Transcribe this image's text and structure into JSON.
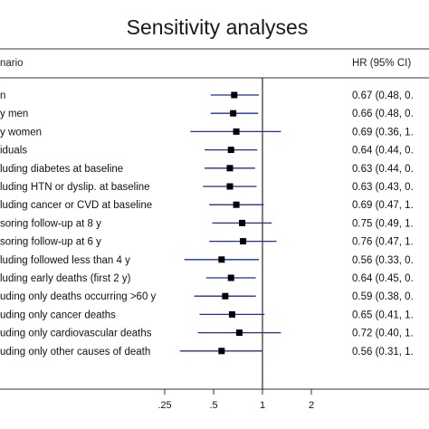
{
  "chart_data": {
    "type": "forest",
    "title": "Sensitivity analyses",
    "column_headers": {
      "label": "nario",
      "value": "HR (95% CI)"
    },
    "x_scale": "log",
    "x_ticks": [
      {
        "value": 0.25,
        "label": ".25"
      },
      {
        "value": 0.5,
        "label": ".5"
      },
      {
        "value": 1,
        "label": "1"
      },
      {
        "value": 2,
        "label": "2"
      }
    ],
    "reference_line": 1,
    "rows": [
      {
        "label": "n",
        "hr": 0.67,
        "lo": 0.48,
        "hi": 0.95,
        "text": "0.67 (0.48, 0."
      },
      {
        "label": "y men",
        "hr": 0.66,
        "lo": 0.48,
        "hi": 0.94,
        "text": "0.66 (0.48, 0."
      },
      {
        "label": "y women",
        "hr": 0.69,
        "lo": 0.36,
        "hi": 1.3,
        "text": "0.69 (0.36, 1."
      },
      {
        "label": "iduals",
        "hr": 0.64,
        "lo": 0.44,
        "hi": 0.93,
        "text": "0.64 (0.44, 0."
      },
      {
        "label": "luding diabetes at baseline",
        "hr": 0.63,
        "lo": 0.44,
        "hi": 0.9,
        "text": "0.63 (0.44, 0."
      },
      {
        "label": "luding HTN or dyslip. at baseline",
        "hr": 0.63,
        "lo": 0.43,
        "hi": 0.92,
        "text": "0.63 (0.43, 0."
      },
      {
        "label": "luding cancer or CVD at baseline",
        "hr": 0.69,
        "lo": 0.47,
        "hi": 1.02,
        "text": "0.69 (0.47, 1."
      },
      {
        "label": "soring follow-up at 8 y",
        "hr": 0.75,
        "lo": 0.49,
        "hi": 1.14,
        "text": "0.75 (0.49, 1."
      },
      {
        "label": "soring follow-up at 6 y",
        "hr": 0.76,
        "lo": 0.47,
        "hi": 1.22,
        "text": "0.76 (0.47, 1."
      },
      {
        "label": "luding followed less than 4 y",
        "hr": 0.56,
        "lo": 0.33,
        "hi": 0.95,
        "text": "0.56 (0.33, 0."
      },
      {
        "label": "luding early deaths (first 2 y)",
        "hr": 0.64,
        "lo": 0.45,
        "hi": 0.91,
        "text": "0.64 (0.45, 0."
      },
      {
        "label": "uding only deaths occurring >60 y",
        "hr": 0.59,
        "lo": 0.38,
        "hi": 0.91,
        "text": "0.59 (0.38, 0."
      },
      {
        "label": "uding only cancer deaths",
        "hr": 0.65,
        "lo": 0.41,
        "hi": 1.03,
        "text": "0.65 (0.41, 1."
      },
      {
        "label": "uding only cardiovascular deaths",
        "hr": 0.72,
        "lo": 0.4,
        "hi": 1.3,
        "text": "0.72 (0.40, 1."
      },
      {
        "label": "uding only other causes of death",
        "hr": 0.56,
        "lo": 0.31,
        "hi": 1.0,
        "text": "0.56 (0.31, 1."
      }
    ],
    "colors": {
      "ci_line": "#1f2f9a",
      "marker": "#000000",
      "reference": "#000000",
      "frame": "#333333",
      "title": "#1a1a1a"
    }
  }
}
